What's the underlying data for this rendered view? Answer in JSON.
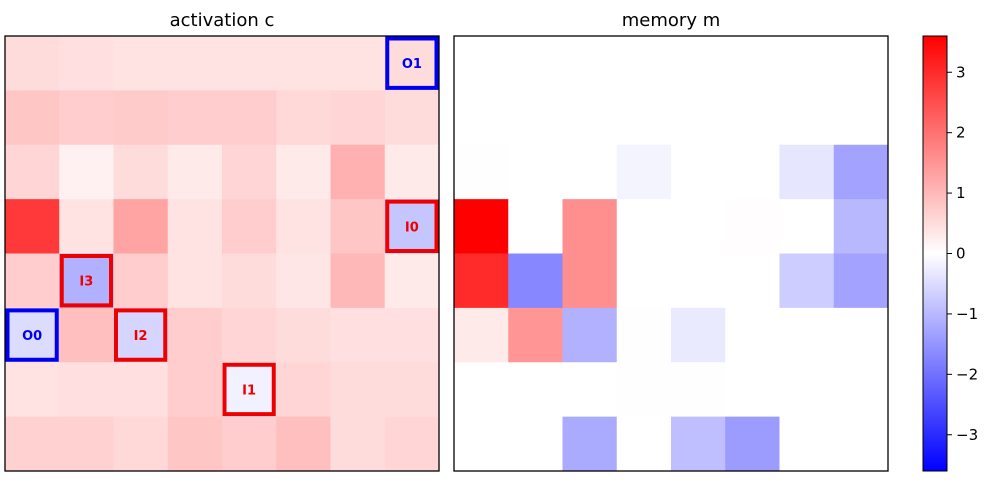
{
  "chart_data": [
    {
      "type": "heatmap",
      "title": "activation c",
      "rows": 8,
      "cols": 8,
      "values": [
        [
          0.5,
          0.45,
          0.4,
          0.4,
          0.4,
          0.4,
          0.4,
          0.5
        ],
        [
          0.8,
          0.7,
          0.75,
          0.7,
          0.7,
          0.55,
          0.6,
          0.5
        ],
        [
          0.6,
          0.2,
          0.5,
          0.3,
          0.6,
          0.3,
          1.1,
          0.3
        ],
        [
          2.8,
          0.4,
          1.3,
          0.4,
          0.7,
          0.4,
          0.8,
          -0.8
        ],
        [
          0.7,
          -1.1,
          0.7,
          0.4,
          0.5,
          0.35,
          1.0,
          0.3
        ],
        [
          -0.5,
          0.9,
          -0.6,
          0.7,
          0.6,
          0.5,
          0.45,
          0.45
        ],
        [
          0.4,
          0.45,
          0.45,
          0.7,
          -0.2,
          0.6,
          0.5,
          0.5
        ],
        [
          0.65,
          0.65,
          0.55,
          0.8,
          0.7,
          0.9,
          0.5,
          0.6
        ]
      ],
      "annotations": [
        {
          "label": "O1",
          "row": 0,
          "col": 7,
          "color": "#0000ee"
        },
        {
          "label": "I0",
          "row": 3,
          "col": 7,
          "color": "#ee0000"
        },
        {
          "label": "I3",
          "row": 4,
          "col": 1,
          "color": "#ee0000"
        },
        {
          "label": "O0",
          "row": 5,
          "col": 0,
          "color": "#0000ee"
        },
        {
          "label": "I2",
          "row": 5,
          "col": 2,
          "color": "#ee0000"
        },
        {
          "label": "I1",
          "row": 6,
          "col": 4,
          "color": "#ee0000"
        }
      ]
    },
    {
      "type": "heatmap",
      "title": "memory m",
      "rows": 8,
      "cols": 8,
      "values": [
        [
          0,
          0,
          0,
          0,
          0,
          0,
          0,
          0
        ],
        [
          0,
          0,
          0,
          0,
          0,
          0,
          0,
          0
        ],
        [
          0.02,
          0,
          0,
          -0.15,
          0,
          0,
          -0.35,
          -1.3
        ],
        [
          3.6,
          0,
          1.6,
          0,
          0,
          0.03,
          0,
          -1.0
        ],
        [
          3.0,
          -1.7,
          1.6,
          0,
          0,
          0,
          -0.7,
          -1.3
        ],
        [
          0.3,
          1.5,
          -1.1,
          0.02,
          -0.3,
          0,
          0,
          0
        ],
        [
          0,
          0,
          0,
          0.02,
          0.02,
          0,
          0,
          0
        ],
        [
          0,
          0,
          -1.2,
          0,
          -0.9,
          -1.4,
          0,
          0
        ]
      ]
    }
  ],
  "colorbar": {
    "cmap": "bwr",
    "vmin": -3.6,
    "vmax": 3.6,
    "ticks": [
      3,
      2,
      1,
      0,
      -1,
      -2,
      -3
    ],
    "tick_labels": [
      "3",
      "2",
      "1",
      "0",
      "−1",
      "−2",
      "−3"
    ]
  }
}
